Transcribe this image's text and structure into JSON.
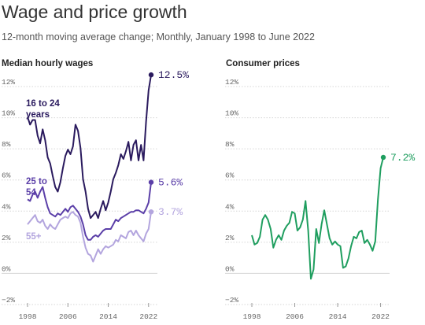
{
  "header": {
    "title": "Wage and price growth",
    "subtitle": "12-month moving average change; Monthly, January 1998 to June 2022"
  },
  "chart_data": [
    {
      "type": "line",
      "title": "Median hourly wages",
      "ylim": [
        -2,
        12
      ],
      "yticks": [
        "12%",
        "10%",
        "8%",
        "6%",
        "4%",
        "2%",
        "0%",
        "−2%"
      ],
      "ytick_values": [
        12,
        10,
        8,
        6,
        4,
        2,
        0,
        -2
      ],
      "xlim": [
        1998,
        2022.5
      ],
      "xticks": [
        "1998",
        "2006",
        "2014",
        "2022"
      ],
      "xtick_values": [
        1998,
        2006,
        2014,
        2022
      ],
      "grid": true,
      "series": [
        {
          "name": "16 to 24 years",
          "color": "#2a1a5e",
          "end_label": "12.5%",
          "x": [
            1998,
            1998.5,
            1999,
            1999.5,
            2000,
            2000.5,
            2001,
            2001.5,
            2002,
            2002.5,
            2003,
            2003.5,
            2004,
            2004.5,
            2005,
            2005.5,
            2006,
            2006.5,
            2007,
            2007.5,
            2008,
            2008.5,
            2009,
            2009.5,
            2010,
            2010.5,
            2011,
            2011.5,
            2012,
            2012.5,
            2013,
            2013.5,
            2014,
            2014.5,
            2015,
            2015.5,
            2016,
            2016.5,
            2017,
            2017.5,
            2018,
            2018.5,
            2019,
            2019.5,
            2020,
            2020.5,
            2021,
            2021.5,
            2022,
            2022.5
          ],
          "values": [
            9.8,
            9.3,
            9.6,
            9.6,
            8.6,
            8.1,
            9.0,
            8.3,
            7.2,
            6.8,
            6.0,
            5.3,
            5.0,
            5.6,
            6.5,
            7.3,
            7.7,
            7.4,
            7.9,
            9.3,
            8.9,
            7.8,
            5.8,
            5.0,
            3.9,
            3.3,
            3.5,
            3.7,
            3.3,
            3.9,
            4.4,
            3.8,
            4.3,
            5.0,
            5.8,
            6.2,
            6.7,
            7.4,
            7.1,
            7.6,
            8.2,
            7.0,
            8.0,
            8.3,
            7.0,
            8.0,
            7.0,
            9.5,
            11.5,
            12.5
          ]
        },
        {
          "name": "25 to 54",
          "color": "#5b3fa8",
          "end_label": "5.6%",
          "x": [
            1998,
            1998.5,
            1999,
            1999.5,
            2000,
            2000.5,
            2001,
            2001.5,
            2002,
            2002.5,
            2003,
            2003.5,
            2004,
            2004.5,
            2005,
            2005.5,
            2006,
            2006.5,
            2007,
            2007.5,
            2008,
            2008.5,
            2009,
            2009.5,
            2010,
            2010.5,
            2011,
            2011.5,
            2012,
            2012.5,
            2013,
            2013.5,
            2014,
            2014.5,
            2015,
            2015.5,
            2016,
            2016.5,
            2017,
            2017.5,
            2018,
            2018.5,
            2019,
            2019.5,
            2020,
            2020.5,
            2021,
            2021.5,
            2022,
            2022.5
          ],
          "values": [
            4.5,
            4.4,
            4.8,
            5.0,
            4.6,
            5.0,
            5.3,
            4.6,
            4.0,
            3.6,
            3.5,
            3.4,
            3.6,
            3.5,
            3.7,
            3.9,
            3.7,
            4.0,
            4.1,
            3.9,
            3.7,
            3.4,
            2.9,
            2.2,
            1.9,
            1.9,
            2.1,
            2.2,
            2.1,
            2.3,
            2.5,
            2.6,
            2.6,
            2.6,
            2.9,
            3.2,
            3.1,
            3.3,
            3.4,
            3.5,
            3.6,
            3.7,
            3.7,
            3.8,
            3.8,
            3.7,
            3.6,
            3.9,
            4.3,
            5.6
          ]
        },
        {
          "name": "55+",
          "color": "#b3a5de",
          "end_label": "3.7%",
          "x": [
            1998,
            1998.5,
            1999,
            1999.5,
            2000,
            2000.5,
            2001,
            2001.5,
            2002,
            2002.5,
            2003,
            2003.5,
            2004,
            2004.5,
            2005,
            2005.5,
            2006,
            2006.5,
            2007,
            2007.5,
            2008,
            2008.5,
            2009,
            2009.5,
            2010,
            2010.5,
            2011,
            2011.5,
            2012,
            2012.5,
            2013,
            2013.5,
            2014,
            2014.5,
            2015,
            2015.5,
            2016,
            2016.5,
            2017,
            2017.5,
            2018,
            2018.5,
            2019,
            2019.5,
            2020,
            2020.5,
            2021,
            2021.5,
            2022,
            2022.5
          ],
          "values": [
            2.9,
            3.1,
            3.3,
            3.5,
            3.1,
            3.0,
            3.2,
            2.8,
            2.6,
            2.9,
            2.7,
            2.6,
            2.9,
            3.2,
            3.3,
            3.4,
            3.3,
            3.6,
            3.7,
            3.5,
            3.4,
            3.0,
            2.1,
            1.4,
            1.0,
            0.9,
            0.5,
            0.9,
            1.3,
            1.0,
            1.3,
            1.5,
            1.4,
            1.5,
            1.6,
            1.9,
            1.8,
            2.2,
            2.1,
            2.0,
            2.4,
            2.5,
            2.2,
            2.5,
            2.2,
            2.0,
            1.8,
            2.3,
            2.6,
            3.7
          ]
        }
      ]
    },
    {
      "type": "line",
      "title": "Consumer prices",
      "ylim": [
        -2,
        12
      ],
      "yticks": [
        "12%",
        "10%",
        "8%",
        "6%",
        "4%",
        "2%",
        "0%",
        "−2%"
      ],
      "ytick_values": [
        12,
        10,
        8,
        6,
        4,
        2,
        0,
        -2
      ],
      "xlim": [
        1998,
        2022.5
      ],
      "xticks": [
        "1998",
        "2006",
        "2014",
        "2022"
      ],
      "xtick_values": [
        1998,
        2006,
        2014,
        2022
      ],
      "grid": true,
      "series": [
        {
          "color": "#1f9e5f",
          "end_label": "7.2%",
          "x": [
            1998,
            1998.5,
            1999,
            1999.5,
            2000,
            2000.5,
            2001,
            2001.5,
            2002,
            2002.5,
            2003,
            2003.5,
            2004,
            2004.5,
            2005,
            2005.5,
            2006,
            2006.5,
            2007,
            2007.5,
            2008,
            2008.5,
            2009,
            2009.5,
            2010,
            2010.5,
            2011,
            2011.5,
            2012,
            2012.5,
            2013,
            2013.5,
            2014,
            2014.5,
            2015,
            2015.5,
            2016,
            2016.5,
            2017,
            2017.5,
            2018,
            2018.5,
            2019,
            2019.5,
            2020,
            2020.5,
            2021,
            2021.5,
            2022,
            2022.5
          ],
          "values": [
            2.2,
            1.6,
            1.7,
            2.1,
            3.2,
            3.5,
            3.2,
            2.6,
            1.4,
            1.9,
            2.2,
            1.9,
            2.5,
            2.8,
            3.0,
            3.7,
            3.6,
            2.5,
            2.7,
            3.2,
            4.4,
            2.5,
            -0.6,
            0.0,
            2.6,
            1.7,
            2.9,
            3.8,
            2.9,
            2.0,
            1.6,
            1.8,
            1.6,
            1.5,
            0.1,
            0.2,
            0.7,
            1.5,
            2.1,
            2.0,
            2.4,
            2.5,
            1.7,
            1.9,
            1.6,
            1.2,
            1.8,
            4.5,
            6.5,
            7.2
          ]
        }
      ]
    }
  ],
  "labels": {
    "youth": "16 to 24 years",
    "prime": "25 to 54",
    "older": "55+"
  }
}
